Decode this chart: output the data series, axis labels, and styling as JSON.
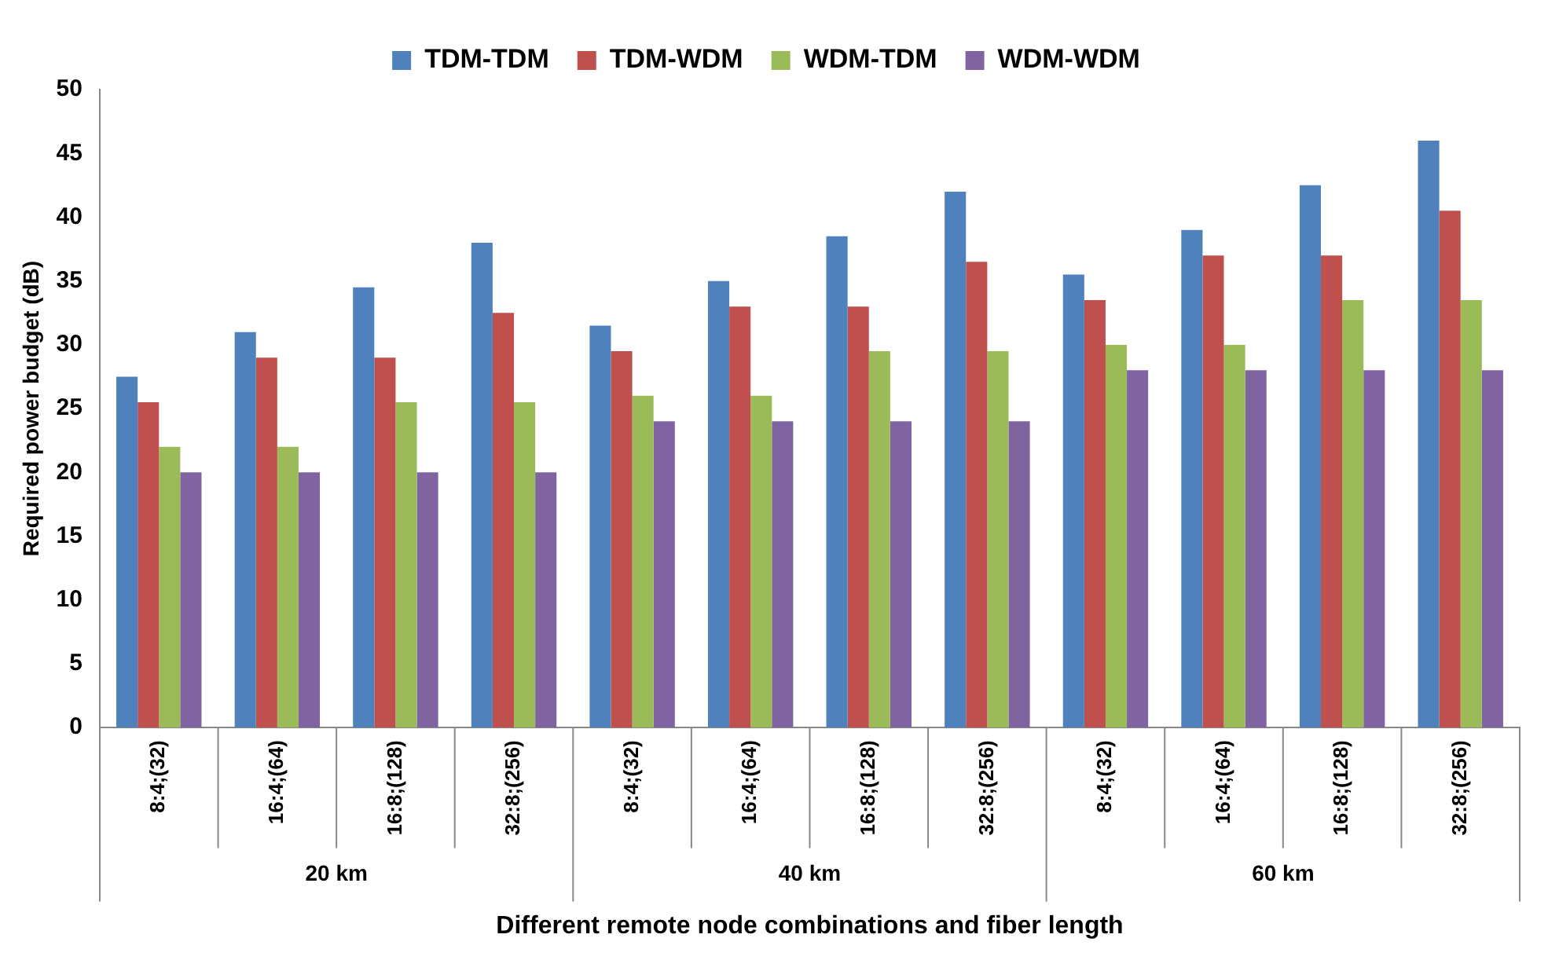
{
  "chart_data": {
    "type": "bar",
    "xlabel": "Different remote node combinations and fiber length",
    "ylabel": "Required power budget (dB)",
    "categories": [
      "8:4;(32)",
      "16:4;(64)",
      "16:8;(128)",
      "32:8;(256)",
      "8:4;(32)",
      "16:4;(64)",
      "16:8;(128)",
      "32:8;(256)",
      "8:4;(32)",
      "16:4;(64)",
      "16:8;(128)",
      "32:8;(256)"
    ],
    "series": [
      {
        "name": "TDM-TDM",
        "color": "#4f81bd",
        "values": [
          27.5,
          31,
          34.5,
          38,
          31.5,
          35,
          38.5,
          42,
          35.5,
          39,
          42.5,
          46
        ]
      },
      {
        "name": "TDM-WDM",
        "color": "#c0504d",
        "values": [
          25.5,
          29,
          29,
          32.5,
          29.5,
          33,
          33,
          36.5,
          33.5,
          37,
          37,
          40.5
        ]
      },
      {
        "name": "WDM-TDM",
        "color": "#9bbb59",
        "values": [
          22,
          22,
          25.5,
          25.5,
          26,
          26,
          29.5,
          29.5,
          30,
          30,
          33.5,
          33.5
        ]
      },
      {
        "name": "WDM-WDM",
        "color": "#8064a2",
        "values": [
          20,
          20,
          20,
          20,
          24,
          24,
          24,
          24,
          28,
          28,
          28,
          28
        ]
      }
    ],
    "annotations": [
      "20 km",
      "40 km",
      "60 km"
    ],
    "ylim": [
      0,
      50
    ],
    "yticks": [
      0,
      5,
      10,
      15,
      20,
      25,
      30,
      35,
      40,
      45,
      50
    ],
    "grid": false,
    "legend": "top"
  }
}
